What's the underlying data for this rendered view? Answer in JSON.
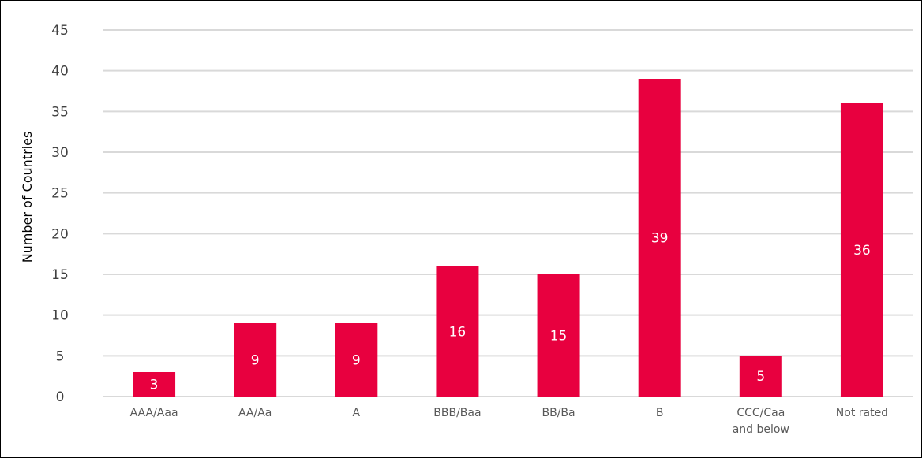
{
  "chart_data": {
    "type": "bar",
    "title": "",
    "xlabel": "",
    "ylabel": "Number of Countries",
    "categories": [
      [
        "AAA/Aaa"
      ],
      [
        "AA/Aa"
      ],
      [
        "A"
      ],
      [
        "BBB/Baa"
      ],
      [
        "BB/Ba"
      ],
      [
        "B"
      ],
      [
        "CCC/Caa",
        "and below"
      ],
      [
        "Not rated"
      ]
    ],
    "values": [
      3,
      9,
      9,
      16,
      15,
      39,
      5,
      36
    ],
    "ylim": [
      0,
      45
    ],
    "yticks": [
      0,
      5,
      10,
      15,
      20,
      25,
      30,
      35,
      40,
      45
    ],
    "grid": true,
    "legend": "none",
    "colors": {
      "bar": "#E8003F",
      "grid": "#D9D9D9",
      "label_inside": "#FFFFFF"
    }
  }
}
